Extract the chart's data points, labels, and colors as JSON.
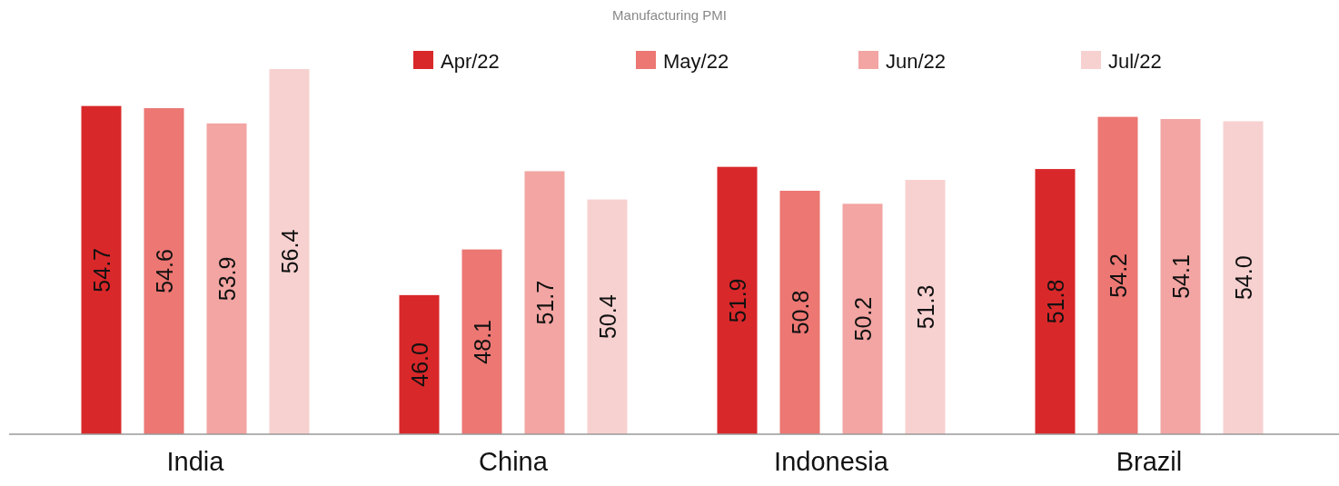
{
  "chart_data": {
    "type": "bar",
    "title": "Manufacturing PMI",
    "categories": [
      "India",
      "China",
      "Indonesia",
      "Brazil"
    ],
    "series": [
      {
        "name": "Apr/22",
        "color": "#d9282a",
        "values": [
          54.7,
          46.0,
          51.9,
          51.8
        ],
        "value_labels": [
          "54.7",
          "46.0",
          "51.9",
          "51.8"
        ]
      },
      {
        "name": "May/22",
        "color": "#ec7773",
        "values": [
          54.6,
          48.1,
          50.8,
          54.2
        ],
        "value_labels": [
          "54.6",
          "48.1",
          "50.8",
          "54.2"
        ]
      },
      {
        "name": "Jun/22",
        "color": "#f2a5a2",
        "values": [
          53.9,
          51.7,
          50.2,
          54.1
        ],
        "value_labels": [
          "53.9",
          "51.7",
          "50.2",
          "54.1"
        ]
      },
      {
        "name": "Jul/22",
        "color": "#f7d1d0",
        "values": [
          56.4,
          50.4,
          51.3,
          54.0
        ],
        "value_labels": [
          "56.4",
          "50.4",
          "51.3",
          "54.0"
        ]
      }
    ],
    "ylim": [
      39.6,
      56.4
    ],
    "tick_labels": "x",
    "legend": "top"
  }
}
